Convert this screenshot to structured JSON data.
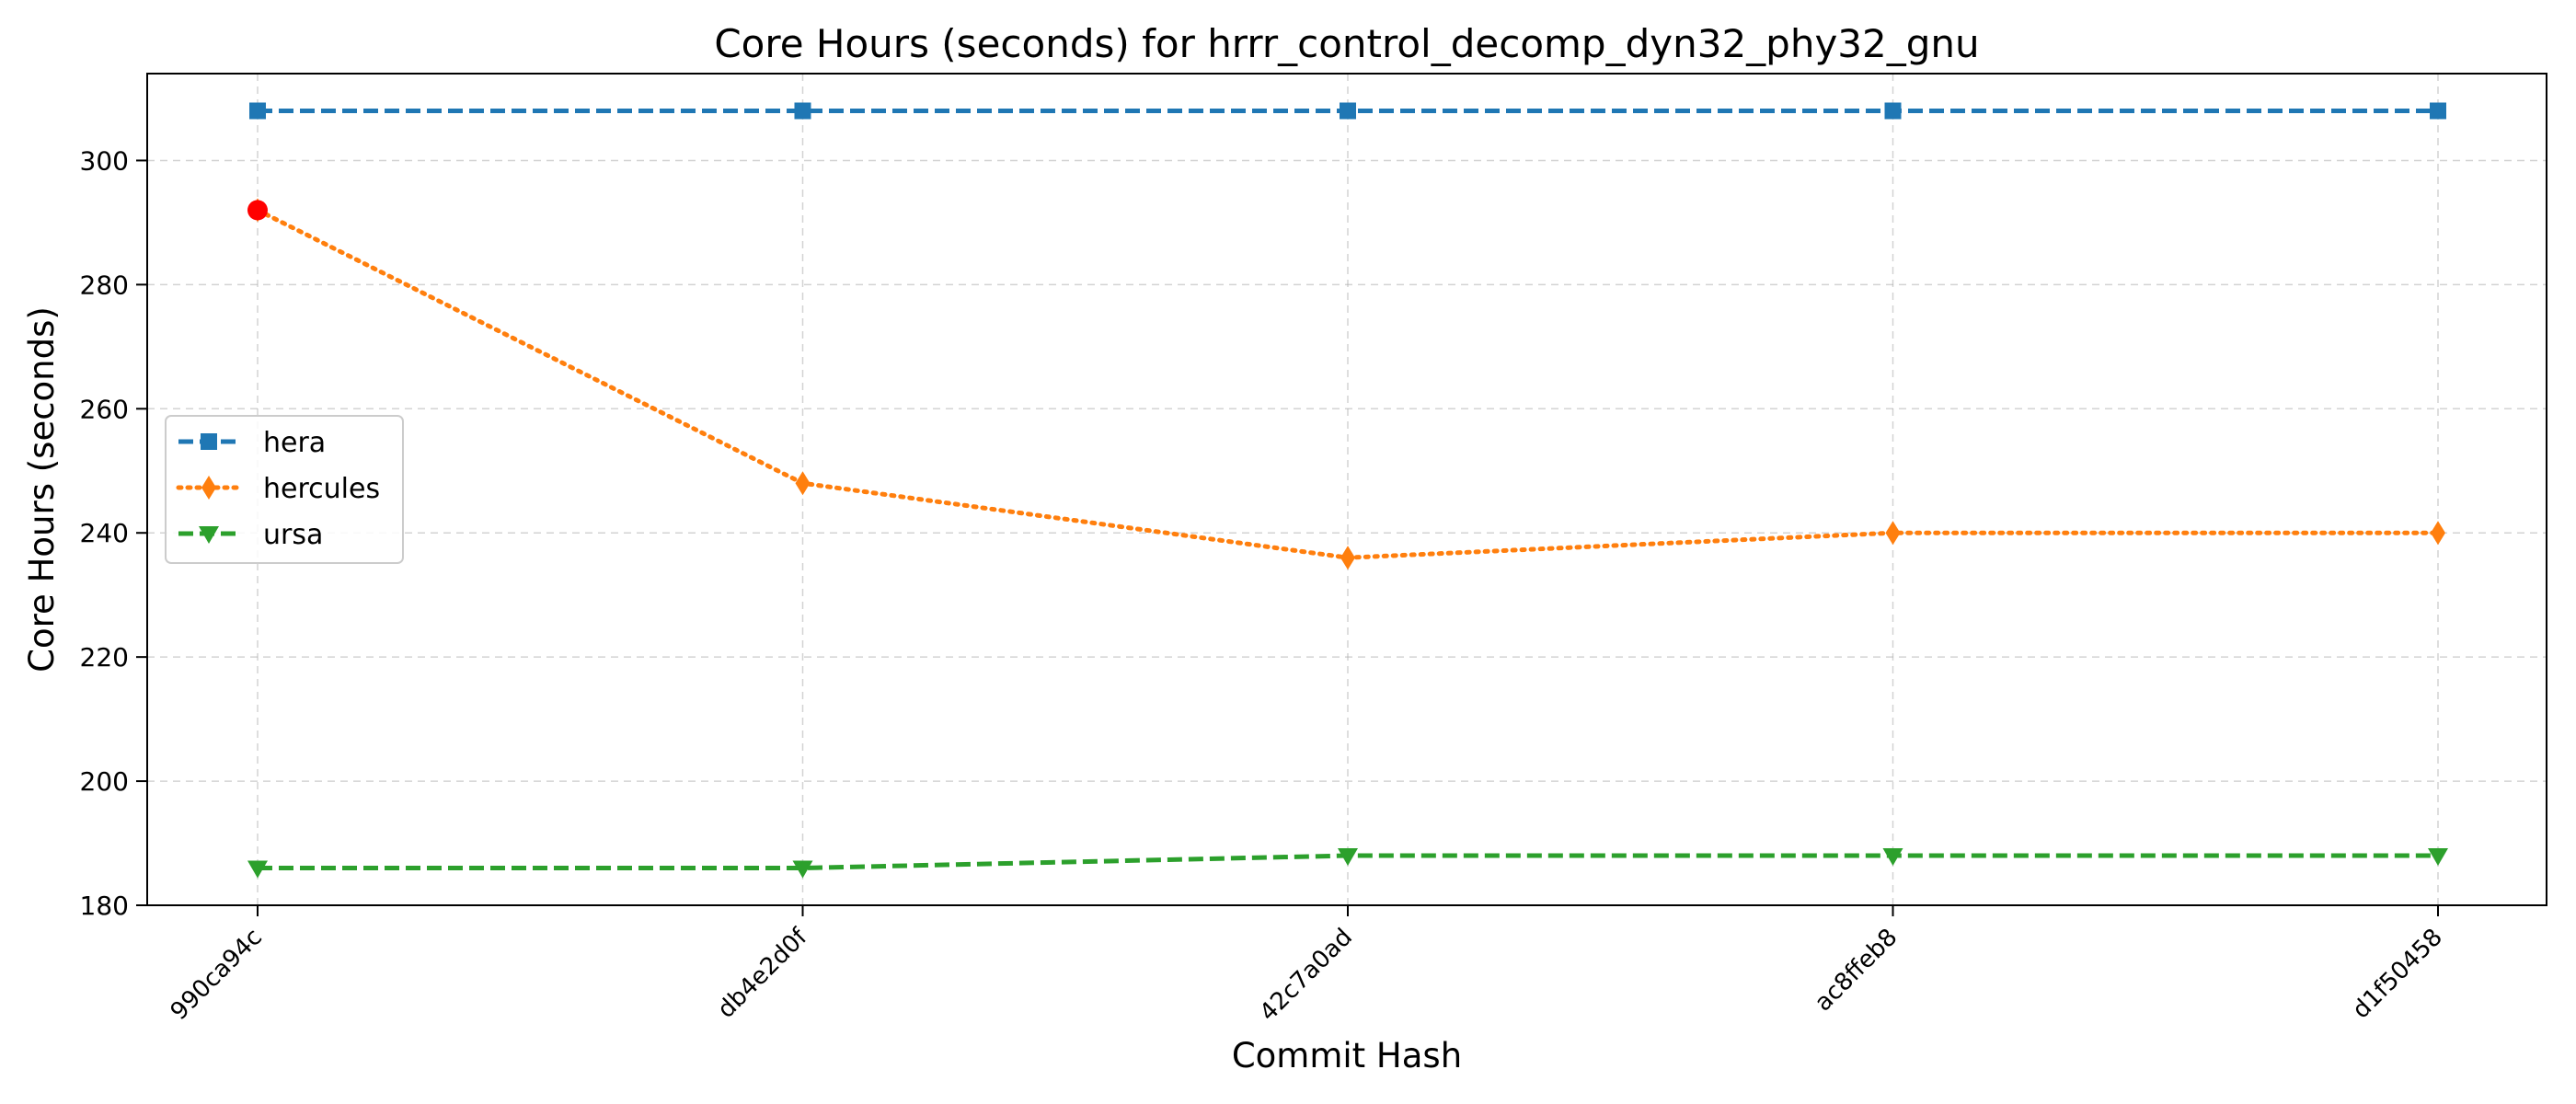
{
  "chart_data": {
    "type": "line",
    "title": "Core Hours (seconds) for hrrr_control_decomp_dyn32_phy32_gnu",
    "xlabel": "Commit Hash",
    "ylabel": "Core Hours (seconds)",
    "categories": [
      "990ca94c",
      "db4e2d0f",
      "42c7a0ad",
      "ac8ffeb8",
      "d1f50458"
    ],
    "ylim": [
      180,
      314
    ],
    "yticks": [
      180,
      200,
      220,
      240,
      260,
      280,
      300
    ],
    "grid": true,
    "legend_position": "center-left",
    "series": [
      {
        "name": "hera",
        "values": [
          308,
          308,
          308,
          308,
          308
        ],
        "color": "#1f77b4",
        "linestyle": "dashed",
        "marker": "square"
      },
      {
        "name": "hercules",
        "values": [
          292,
          248,
          236,
          240,
          240
        ],
        "color": "#ff7f0e",
        "linestyle": "dotted",
        "marker": "thin-diamond"
      },
      {
        "name": "ursa",
        "values": [
          186,
          186,
          188,
          188,
          188
        ],
        "color": "#2ca02c",
        "linestyle": "dashed",
        "marker": "triangle-down"
      }
    ],
    "highlight": {
      "series": "hercules",
      "category": "990ca94c",
      "value": 292,
      "color": "#ff0000"
    }
  }
}
